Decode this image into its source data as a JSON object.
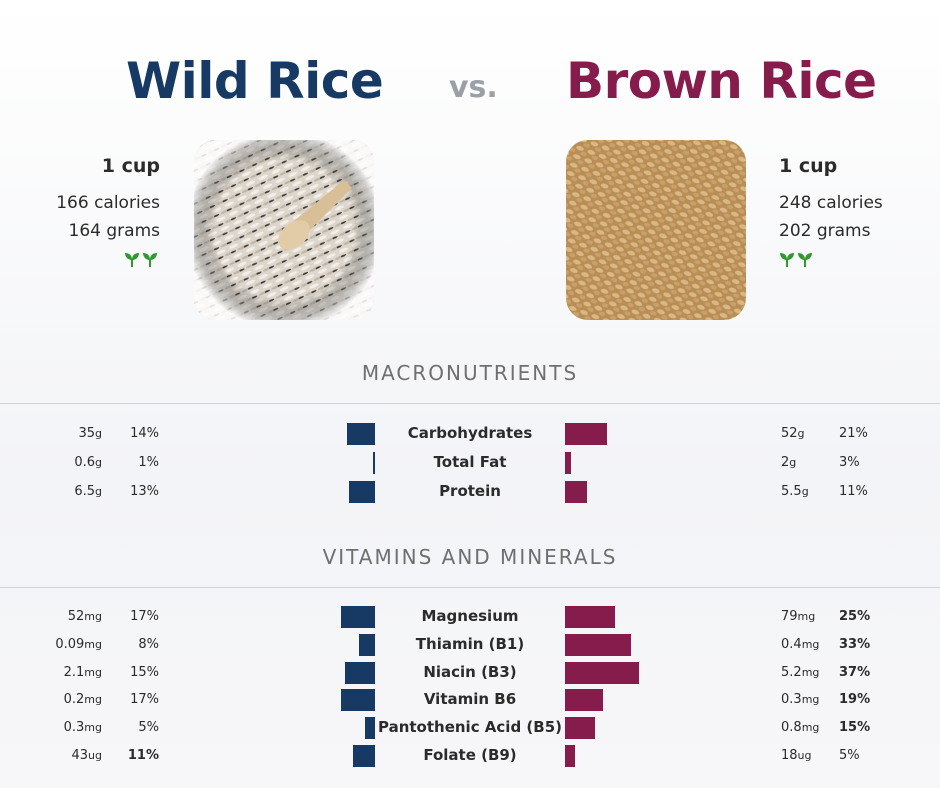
{
  "left_food": {
    "name": "Wild Rice",
    "serving": "1 cup",
    "calories": "166 calories",
    "grams": "164 grams",
    "color": "#163a63",
    "icon": "sprouts-icon"
  },
  "vs_label": "vs.",
  "right_food": {
    "name": "Brown Rice",
    "serving": "1 cup",
    "calories": "248 calories",
    "grams": "202 grams",
    "color": "#861c4b",
    "icon": "sprouts-icon"
  },
  "sections": {
    "macro_title": "MACRONUTRIENTS",
    "vitamin_title": "VITAMINS AND MINERALS"
  },
  "chart_data": {
    "type": "bar",
    "series": [
      {
        "name": "Wild Rice",
        "color": "#163a63"
      },
      {
        "name": "Brown Rice",
        "color": "#861c4b"
      }
    ],
    "macronutrients": [
      {
        "name": "Carbohydrates",
        "left": {
          "amount": "35",
          "unit": "g",
          "pct": "14%",
          "value": 14,
          "bold": false
        },
        "right": {
          "amount": "52",
          "unit": "g",
          "pct": "21%",
          "value": 21,
          "bold": false
        }
      },
      {
        "name": "Total Fat",
        "left": {
          "amount": "0.6",
          "unit": "g",
          "pct": "1%",
          "value": 1,
          "bold": false
        },
        "right": {
          "amount": "2",
          "unit": "g",
          "pct": "3%",
          "value": 3,
          "bold": false
        }
      },
      {
        "name": "Protein",
        "left": {
          "amount": "6.5",
          "unit": "g",
          "pct": "13%",
          "value": 13,
          "bold": false
        },
        "right": {
          "amount": "5.5",
          "unit": "g",
          "pct": "11%",
          "value": 11,
          "bold": false
        }
      }
    ],
    "vitamins_minerals": [
      {
        "name": "Magnesium",
        "left": {
          "amount": "52",
          "unit": "mg",
          "pct": "17%",
          "value": 17,
          "bold": false
        },
        "right": {
          "amount": "79",
          "unit": "mg",
          "pct": "25%",
          "value": 25,
          "bold": true
        }
      },
      {
        "name": "Thiamin (B1)",
        "left": {
          "amount": "0.09",
          "unit": "mg",
          "pct": "8%",
          "value": 8,
          "bold": false
        },
        "right": {
          "amount": "0.4",
          "unit": "mg",
          "pct": "33%",
          "value": 33,
          "bold": true
        }
      },
      {
        "name": "Niacin (B3)",
        "left": {
          "amount": "2.1",
          "unit": "mg",
          "pct": "15%",
          "value": 15,
          "bold": false
        },
        "right": {
          "amount": "5.2",
          "unit": "mg",
          "pct": "37%",
          "value": 37,
          "bold": true
        }
      },
      {
        "name": "Vitamin B6",
        "left": {
          "amount": "0.2",
          "unit": "mg",
          "pct": "17%",
          "value": 17,
          "bold": false
        },
        "right": {
          "amount": "0.3",
          "unit": "mg",
          "pct": "19%",
          "value": 19,
          "bold": true
        }
      },
      {
        "name": "Pantothenic Acid (B5)",
        "left": {
          "amount": "0.3",
          "unit": "mg",
          "pct": "5%",
          "value": 5,
          "bold": false
        },
        "right": {
          "amount": "0.8",
          "unit": "mg",
          "pct": "15%",
          "value": 15,
          "bold": true
        }
      },
      {
        "name": "Folate (B9)",
        "left": {
          "amount": "43",
          "unit": "ug",
          "pct": "11%",
          "value": 11,
          "bold": true
        },
        "right": {
          "amount": "18",
          "unit": "ug",
          "pct": "5%",
          "value": 5,
          "bold": false
        }
      }
    ]
  }
}
